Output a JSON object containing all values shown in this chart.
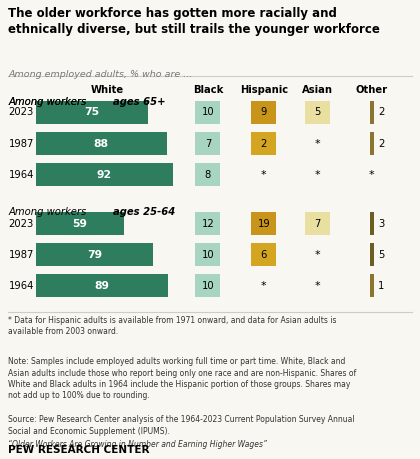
{
  "title": "The older workforce has gotten more racially and\nethnically diverse, but still trails the younger workforce",
  "subtitle": "Among employed adults, % who are ...",
  "section1_normal": "Among workers ",
  "section1_bold": "ages 65+",
  "section2_normal": "Among workers ",
  "section2_bold": "ages 25-64",
  "col_headers": [
    "White",
    "Black",
    "Hispanic",
    "Asian",
    "Other"
  ],
  "group1": {
    "years": [
      "2023",
      "1987",
      "1964"
    ],
    "white": [
      75,
      88,
      92
    ],
    "black": [
      "10",
      "7",
      "8"
    ],
    "hispanic": [
      "9",
      "2",
      "*"
    ],
    "asian": [
      "5",
      "*",
      "*"
    ],
    "other": [
      "2",
      "2",
      "*"
    ]
  },
  "group2": {
    "years": [
      "2023",
      "1987",
      "1964"
    ],
    "white": [
      59,
      79,
      89
    ],
    "black": [
      "12",
      "10",
      "10"
    ],
    "hispanic": [
      "19",
      "6",
      "*"
    ],
    "asian": [
      "7",
      "*",
      "*"
    ],
    "other": [
      "3",
      "5",
      "1"
    ]
  },
  "white_bar_color": "#2e7d5e",
  "black_box_color": "#a8d5c2",
  "hispanic_color_large": "#c8951a",
  "hispanic_color_small": "#d4a520",
  "asian_box_color": "#e8dfa0",
  "other_bar_color_light": "#8b7530",
  "other_bar_color_dark": "#6b5e20",
  "footnote1": "* Data for Hispanic adults is available from 1971 onward, and data for Asian adults is\navailable from 2003 onward.",
  "note": "Note: Samples include employed adults working full time or part time. White, Black and\nAsian adults include those who report being only one race and are non-Hispanic. Shares of\nWhite and Black adults in 1964 include the Hispanic portion of those groups. Shares may\nnot add up to 100% due to rounding.",
  "source": "Source: Pew Research Center analysis of the 1964-2023 Current Population Survey Annual\nSocial and Economic Supplement (IPUMS).",
  "citation": "“Older Workers Are Growing in Number and Earning Higher Wages”",
  "brand": "PEW RESEARCH CENTER",
  "bg_color": "#f9f7f2"
}
